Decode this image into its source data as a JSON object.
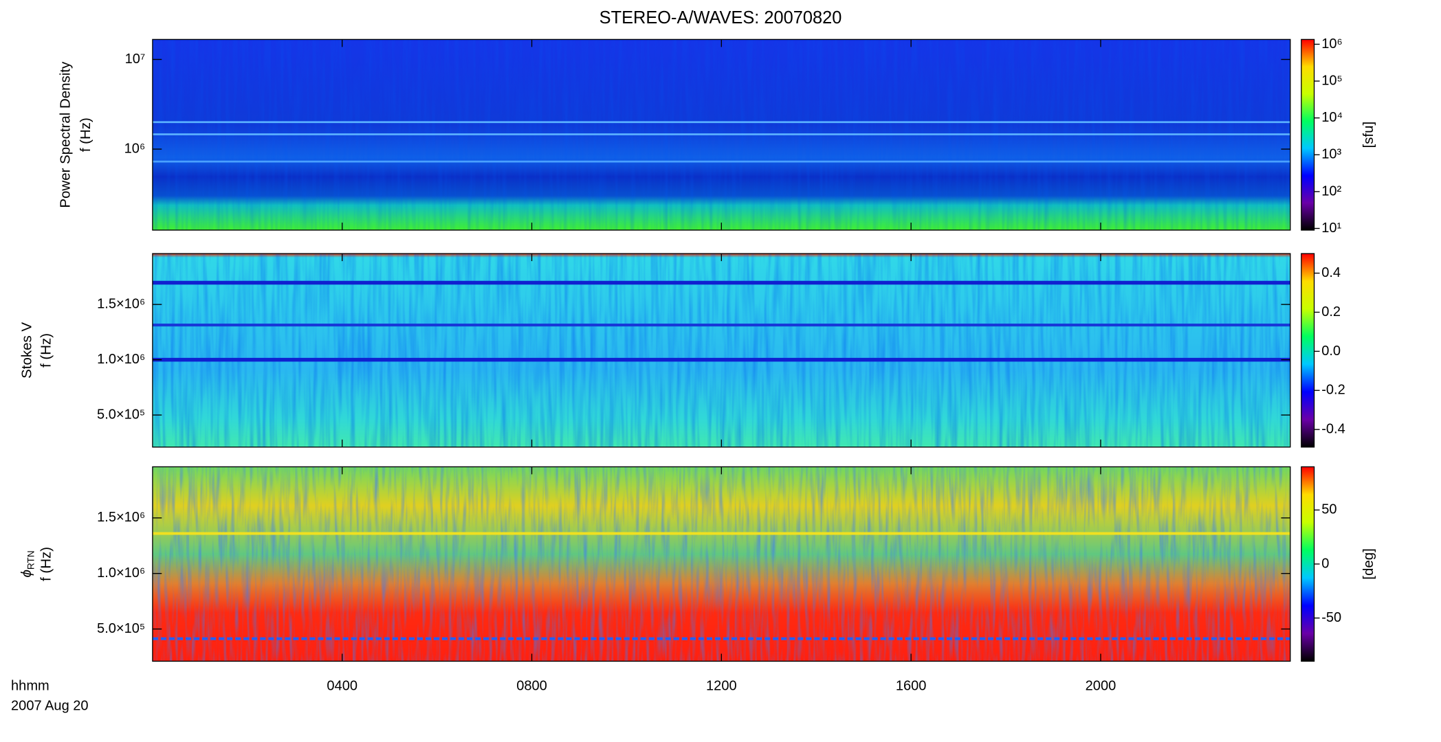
{
  "chart_data": [
    {
      "type": "heatmap",
      "title": "STEREO-A/WAVES: 20070820",
      "ylabel": [
        "Power Spectral Density",
        "f (Hz)"
      ],
      "yscale": "log",
      "ylim": [
        125000,
        16700000
      ],
      "yticks": [
        {
          "value": 1000000,
          "label": "10⁶"
        },
        {
          "value": 10000000,
          "label": "10⁷"
        }
      ],
      "colormap": [
        "#000000",
        "#6a00a8",
        "#0000ff",
        "#00c8ff",
        "#00ff60",
        "#c8ff00",
        "#ffdc00",
        "#ff0000"
      ],
      "colorbar": {
        "scale": "log",
        "lim": [
          9,
          1350000
        ],
        "label": "[sfu]",
        "ticks": [
          {
            "value": 10,
            "label": "10¹"
          },
          {
            "value": 100,
            "label": "10²"
          },
          {
            "value": 1000,
            "label": "10³"
          },
          {
            "value": 10000,
            "label": "10⁴"
          },
          {
            "value": 100000,
            "label": "10⁵"
          },
          {
            "value": 1000000,
            "label": "10⁶"
          }
        ]
      }
    },
    {
      "type": "heatmap",
      "ylabel": [
        "Stokes V",
        "f (Hz)"
      ],
      "yscale": "linear",
      "ylim": [
        210000,
        1960000
      ],
      "yticks": [
        {
          "value": 500000,
          "label": "5.0×10⁵"
        },
        {
          "value": 1000000,
          "label": "1.0×10⁶"
        },
        {
          "value": 1500000,
          "label": "1.5×10⁶"
        }
      ],
      "colormap": [
        "#000000",
        "#6a00a8",
        "#0000ff",
        "#00c8ff",
        "#00ff60",
        "#c8ff00",
        "#ffdc00",
        "#ff0000"
      ],
      "colorbar": {
        "scale": "linear",
        "lim": [
          -0.49,
          0.5
        ],
        "ticks": [
          -0.4,
          -0.2,
          {
            "value": 0,
            "label": "0.0"
          },
          0.2,
          0.4
        ]
      }
    },
    {
      "type": "heatmap",
      "ylabel": [
        "f (Hz)"
      ],
      "ylabel_symbol": "ϕ",
      "ylabel_subscript": "RTN",
      "yscale": "linear",
      "ylim": [
        210000,
        1960000
      ],
      "yticks": [
        {
          "value": 500000,
          "label": "5.0×10⁵"
        },
        {
          "value": 1000000,
          "label": "1.0×10⁶"
        },
        {
          "value": 1500000,
          "label": "1.5×10⁶"
        }
      ],
      "colormap": [
        "#000000",
        "#6a00a8",
        "#0000ff",
        "#00c8ff",
        "#00ff60",
        "#c8ff00",
        "#ffdc00",
        "#ff0000"
      ],
      "colorbar": {
        "scale": "linear",
        "lim": [
          -90,
          90
        ],
        "label": "[deg]",
        "ticks": [
          -50,
          0,
          50
        ]
      },
      "xlim": [
        0,
        24
      ],
      "xticks": [
        {
          "value": 4,
          "label": "0400"
        },
        {
          "value": 8,
          "label": "0800"
        },
        {
          "value": 12,
          "label": "1200"
        },
        {
          "value": 16,
          "label": "1600"
        },
        {
          "value": 20,
          "label": "2000"
        }
      ],
      "xlabel": "hhmm",
      "date": "2007 Aug 20"
    }
  ]
}
